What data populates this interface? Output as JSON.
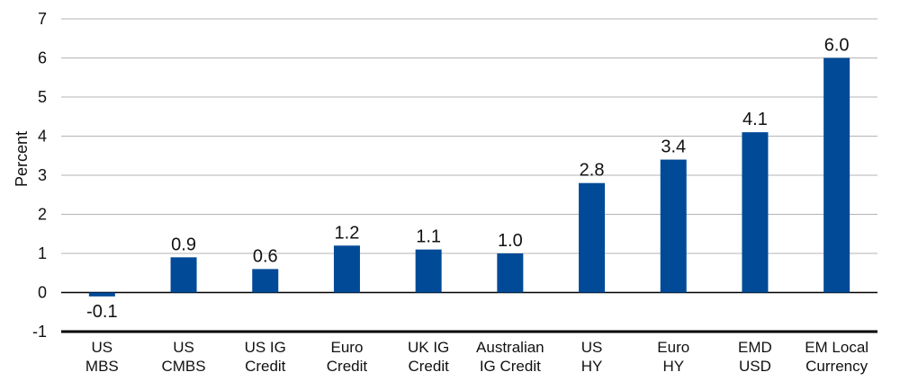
{
  "chart_data": {
    "type": "bar",
    "ylabel": "Percent",
    "xlabel": "",
    "ylim": [
      -1,
      7
    ],
    "yticks": [
      -1,
      0,
      1,
      2,
      3,
      4,
      5,
      6,
      7
    ],
    "grid": true,
    "categories": [
      [
        "US",
        "MBS"
      ],
      [
        "US",
        "CMBS"
      ],
      [
        "US IG",
        "Credit"
      ],
      [
        "Euro",
        "Credit"
      ],
      [
        "UK IG",
        "Credit"
      ],
      [
        "Australian",
        "IG Credit"
      ],
      [
        "US",
        "HY"
      ],
      [
        "Euro",
        "HY"
      ],
      [
        "EMD",
        "USD"
      ],
      [
        "EM Local",
        "Currency"
      ]
    ],
    "values": [
      -0.1,
      0.9,
      0.6,
      1.2,
      1.1,
      1.0,
      2.8,
      3.4,
      4.1,
      6.0
    ],
    "value_labels": [
      "-0.1",
      "0.9",
      "0.6",
      "1.2",
      "1.1",
      "1.0",
      "2.8",
      "3.4",
      "4.1",
      "6.0"
    ],
    "bar_color": "#004a97"
  }
}
